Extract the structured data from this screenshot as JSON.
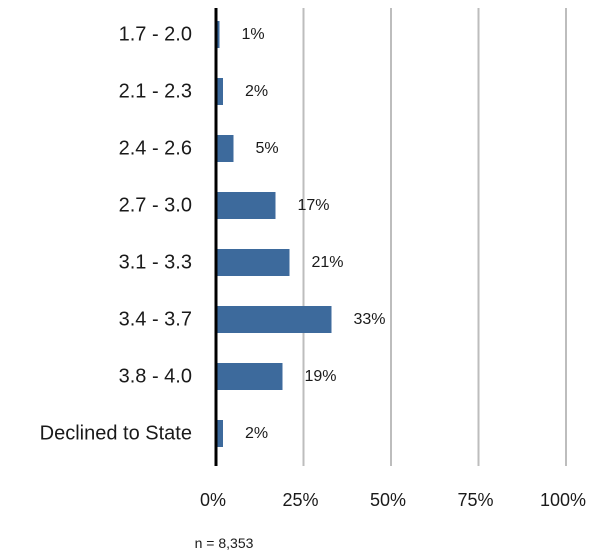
{
  "chart_data": {
    "type": "bar",
    "orientation": "horizontal",
    "categories": [
      "1.7 - 2.0",
      "2.1 - 2.3",
      "2.4 - 2.6",
      "2.7 - 3.0",
      "3.1 - 3.3",
      "3.4 - 3.7",
      "3.8 - 4.0",
      "Declined to State"
    ],
    "values": [
      1,
      2,
      5,
      17,
      21,
      33,
      19,
      2
    ],
    "value_labels": [
      "1%",
      "2%",
      "5%",
      "17%",
      "21%",
      "33%",
      "19%",
      "2%"
    ],
    "xlim": [
      0,
      100
    ],
    "xticks": [
      0,
      25,
      50,
      75,
      100
    ],
    "xtick_labels": [
      "0%",
      "25%",
      "50%",
      "75%",
      "100%"
    ],
    "grid": true,
    "legend": "none",
    "note": "n = 8,353",
    "colors": {
      "bar": "#3d6a9c",
      "grid": "#bdbdbd",
      "axis": "#000000"
    }
  }
}
